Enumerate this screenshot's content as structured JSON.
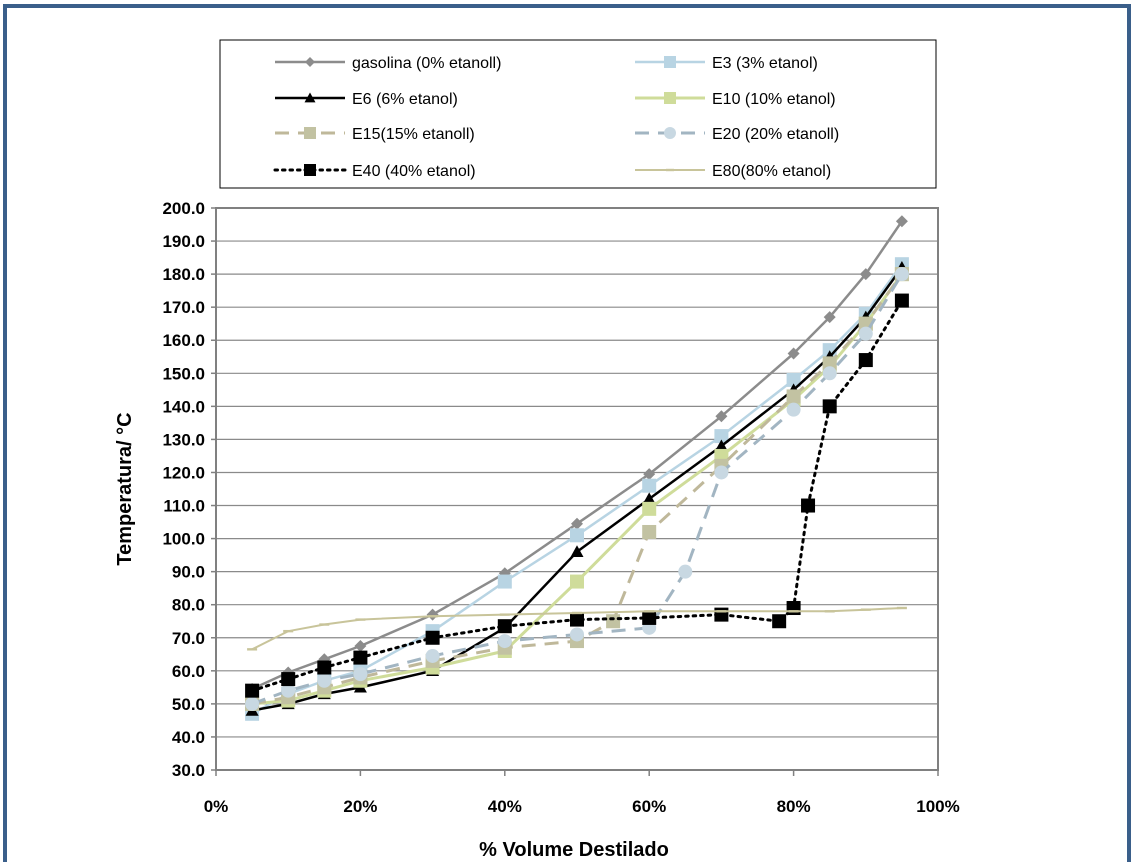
{
  "chart_data": {
    "type": "line",
    "title": "",
    "xlabel": "% Volume Destilado",
    "ylabel": "Temperatura/ °C",
    "xlim": [
      0,
      100
    ],
    "ylim": [
      30,
      200
    ],
    "x_ticks": [
      "0%",
      "20%",
      "40%",
      "60%",
      "80%",
      "100%"
    ],
    "y_ticks": [
      "30.0",
      "40.0",
      "50.0",
      "60.0",
      "70.0",
      "80.0",
      "90.0",
      "100.0",
      "110.0",
      "120.0",
      "130.0",
      "140.0",
      "150.0",
      "160.0",
      "170.0",
      "180.0",
      "190.0",
      "200.0"
    ],
    "grid": "horizontal",
    "legend_position": "top",
    "series": [
      {
        "name": "gasolina  (0% etanoll)",
        "color": "#8c8c8c",
        "dash": "solid",
        "width": 2.5,
        "marker": "diamond",
        "x": [
          5,
          10,
          15,
          20,
          30,
          40,
          50,
          60,
          70,
          80,
          85,
          90,
          95
        ],
        "y": [
          54.5,
          59.5,
          63.5,
          67.5,
          77,
          89.5,
          104.5,
          119.5,
          137,
          156,
          167,
          180,
          196
        ]
      },
      {
        "name": "E3 (3% etanol)",
        "color": "#b8d4e3",
        "dash": "solid",
        "width": 2.5,
        "marker": "square",
        "x": [
          5,
          10,
          15,
          20,
          30,
          40,
          50,
          60,
          70,
          80,
          85,
          90,
          95
        ],
        "y": [
          47,
          53,
          57,
          60,
          72,
          87,
          101,
          116,
          131,
          148,
          157,
          168,
          183
        ]
      },
      {
        "name": "E6 (6% etanol)",
        "color": "#000000",
        "dash": "solid",
        "width": 2.5,
        "marker": "triangle",
        "x": [
          5,
          10,
          15,
          20,
          30,
          40,
          50,
          60,
          70,
          80,
          85,
          90,
          95
        ],
        "y": [
          48,
          50,
          53,
          55,
          60,
          73,
          96,
          112,
          128,
          145,
          155,
          167,
          182
        ]
      },
      {
        "name": "E10 (10% etanol)",
        "color": "#cfdc9a",
        "dash": "solid",
        "width": 3,
        "marker": "square",
        "x": [
          5,
          10,
          15,
          20,
          30,
          40,
          50,
          60,
          70,
          80,
          85,
          90,
          95
        ],
        "y": [
          50,
          51,
          54,
          57,
          61,
          66,
          87,
          109,
          125,
          142,
          152,
          165,
          180
        ]
      },
      {
        "name": "E15(15% etanoll)",
        "color": "#bfb89a",
        "dash": "long",
        "width": 3,
        "marker": "square",
        "x": [
          5,
          10,
          15,
          20,
          30,
          40,
          50,
          55,
          60,
          70,
          80,
          85,
          90,
          95
        ],
        "y": [
          50,
          52,
          55,
          58,
          63,
          67,
          69,
          75,
          102,
          122,
          143,
          153,
          165,
          180
        ]
      },
      {
        "name": "E20 (20% etanoll)",
        "color": "#a2b5c2",
        "dash": "long",
        "width": 3,
        "marker": "circle",
        "x": [
          5,
          10,
          15,
          20,
          30,
          40,
          50,
          60,
          65,
          70,
          80,
          85,
          90,
          95
        ],
        "y": [
          50,
          54,
          57,
          59,
          64.5,
          69,
          71,
          73,
          90,
          120,
          139,
          150,
          162,
          180
        ]
      },
      {
        "name": "E40 (40% etanol)",
        "color": "#000000",
        "dash": "dot",
        "width": 3,
        "marker": "square",
        "x": [
          5,
          10,
          15,
          20,
          30,
          40,
          50,
          60,
          70,
          78,
          80,
          82,
          85,
          90,
          95
        ],
        "y": [
          54,
          57.5,
          61,
          64,
          70,
          73.5,
          75.5,
          76,
          77,
          75,
          79,
          110,
          140,
          154,
          172
        ]
      },
      {
        "name": "E80(80% etanol)",
        "color": "#c8c49a",
        "dash": "solid",
        "width": 2,
        "marker": "dash",
        "x": [
          5,
          10,
          15,
          20,
          30,
          40,
          50,
          60,
          70,
          80,
          85,
          90,
          95
        ],
        "y": [
          66.5,
          72,
          74,
          75.5,
          76.5,
          77,
          77.5,
          78,
          78,
          78,
          78,
          78.5,
          79
        ]
      }
    ]
  }
}
